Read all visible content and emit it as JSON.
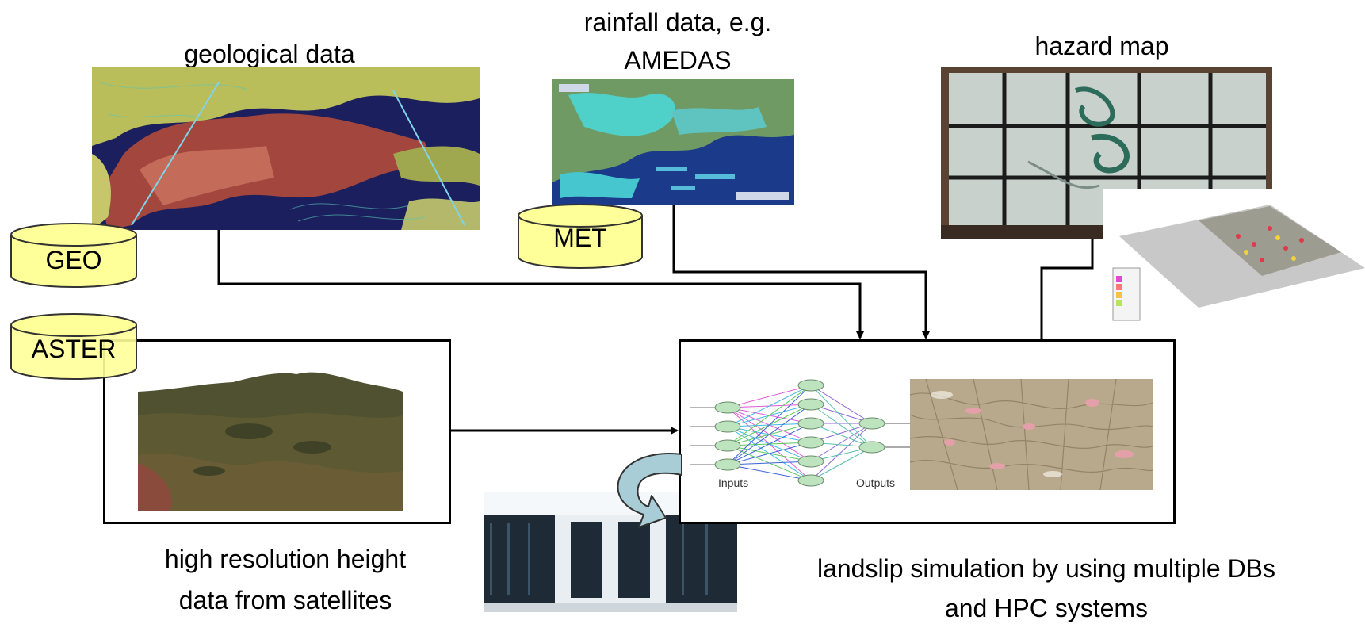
{
  "labels": {
    "geological": "geological data",
    "rainfall_line1": "rainfall data, e.g.",
    "rainfall_line2": "AMEDAS",
    "hazard": "hazard map",
    "height_line1": "high resolution height",
    "height_line2": "data from satellites",
    "landslip_line1": "landslip simulation by using multiple DBs",
    "landslip_line2": "and HPC systems"
  },
  "databases": {
    "geo": "GEO",
    "met": "MET",
    "aster": "ASTER"
  },
  "network_labels": {
    "inputs": "Inputs",
    "outputs": "Outputs"
  },
  "colors": {
    "database_fill": "#ffff99",
    "database_stroke": "#333333",
    "box_stroke": "#000000",
    "arrow": "#000000",
    "curved_arrow": "#a9cdd6"
  }
}
